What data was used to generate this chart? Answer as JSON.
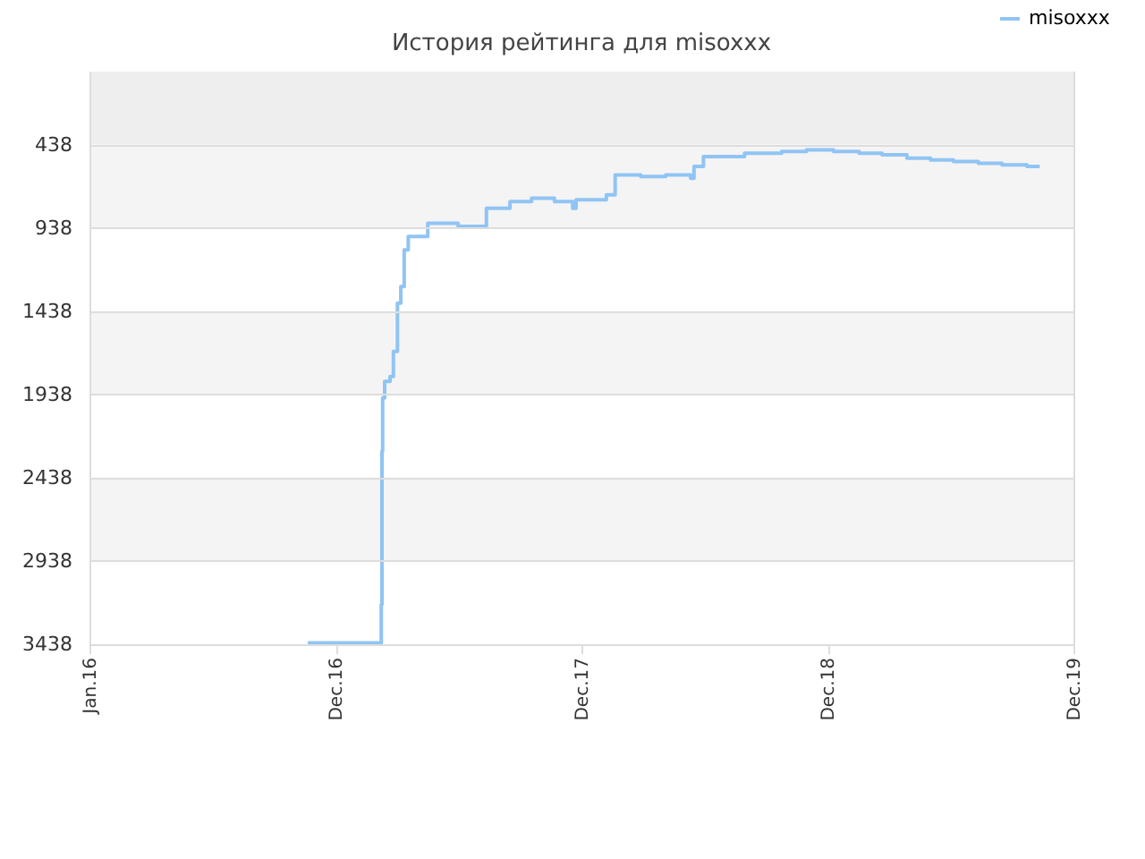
{
  "chart_data": {
    "type": "step",
    "title": "История рейтинга для misoxxx",
    "xlim": [
      "2016-01-01",
      "2019-12-31"
    ],
    "xticks": [
      {
        "value": "2016-01-01",
        "label": "Jan.16"
      },
      {
        "value": "2016-12-31",
        "label": "Dec.16"
      },
      {
        "value": "2017-12-31",
        "label": "Dec.17"
      },
      {
        "value": "2018-12-31",
        "label": "Dec.18"
      },
      {
        "value": "2019-12-31",
        "label": "Dec.19"
      }
    ],
    "ylim": [
      3438,
      0
    ],
    "yticks": [
      438,
      938,
      1438,
      1938,
      2438,
      2938,
      3438
    ],
    "grid": "y",
    "legend": "top right",
    "bands": [
      {
        "axis": "y",
        "from": 0,
        "to": 438,
        "color": "#eeeeee"
      },
      {
        "axis": "y",
        "from": 438,
        "to": 938,
        "color": "#f4f4f4"
      },
      {
        "axis": "y",
        "from": 1438,
        "to": 1938,
        "color": "#f4f4f4"
      },
      {
        "axis": "y",
        "from": 2438,
        "to": 2938,
        "color": "#f4f4f4"
      }
    ],
    "series": [
      {
        "name": "misoxxx",
        "color": "#90c4f4",
        "x": [
          "2016-11-20",
          "2017-03-09",
          "2017-03-10",
          "2017-03-11",
          "2017-03-14",
          "2017-03-22",
          "2017-03-27",
          "2017-04-02",
          "2017-04-07",
          "2017-04-12",
          "2017-04-18",
          "2017-05-17",
          "2017-07-01",
          "2017-08-12",
          "2017-09-16",
          "2017-10-18",
          "2017-11-21",
          "2017-12-18",
          "2017-12-23",
          "2018-02-06",
          "2018-02-19",
          "2018-03-29",
          "2018-05-05",
          "2018-06-11",
          "2018-06-16",
          "2018-06-30",
          "2018-08-30",
          "2018-10-24",
          "2018-11-30",
          "2019-01-09",
          "2019-02-16",
          "2019-03-22",
          "2019-04-28",
          "2019-06-02",
          "2019-07-06",
          "2019-08-12",
          "2019-09-16",
          "2019-10-23",
          "2019-11-11"
        ],
        "values": [
          3430,
          3200,
          2280,
          1960,
          1860,
          1830,
          1680,
          1390,
          1290,
          1070,
          990,
          910,
          930,
          820,
          780,
          760,
          780,
          820,
          770,
          740,
          620,
          630,
          620,
          640,
          570,
          510,
          490,
          480,
          470,
          480,
          490,
          500,
          520,
          530,
          540,
          550,
          560,
          570,
          570
        ]
      }
    ]
  }
}
